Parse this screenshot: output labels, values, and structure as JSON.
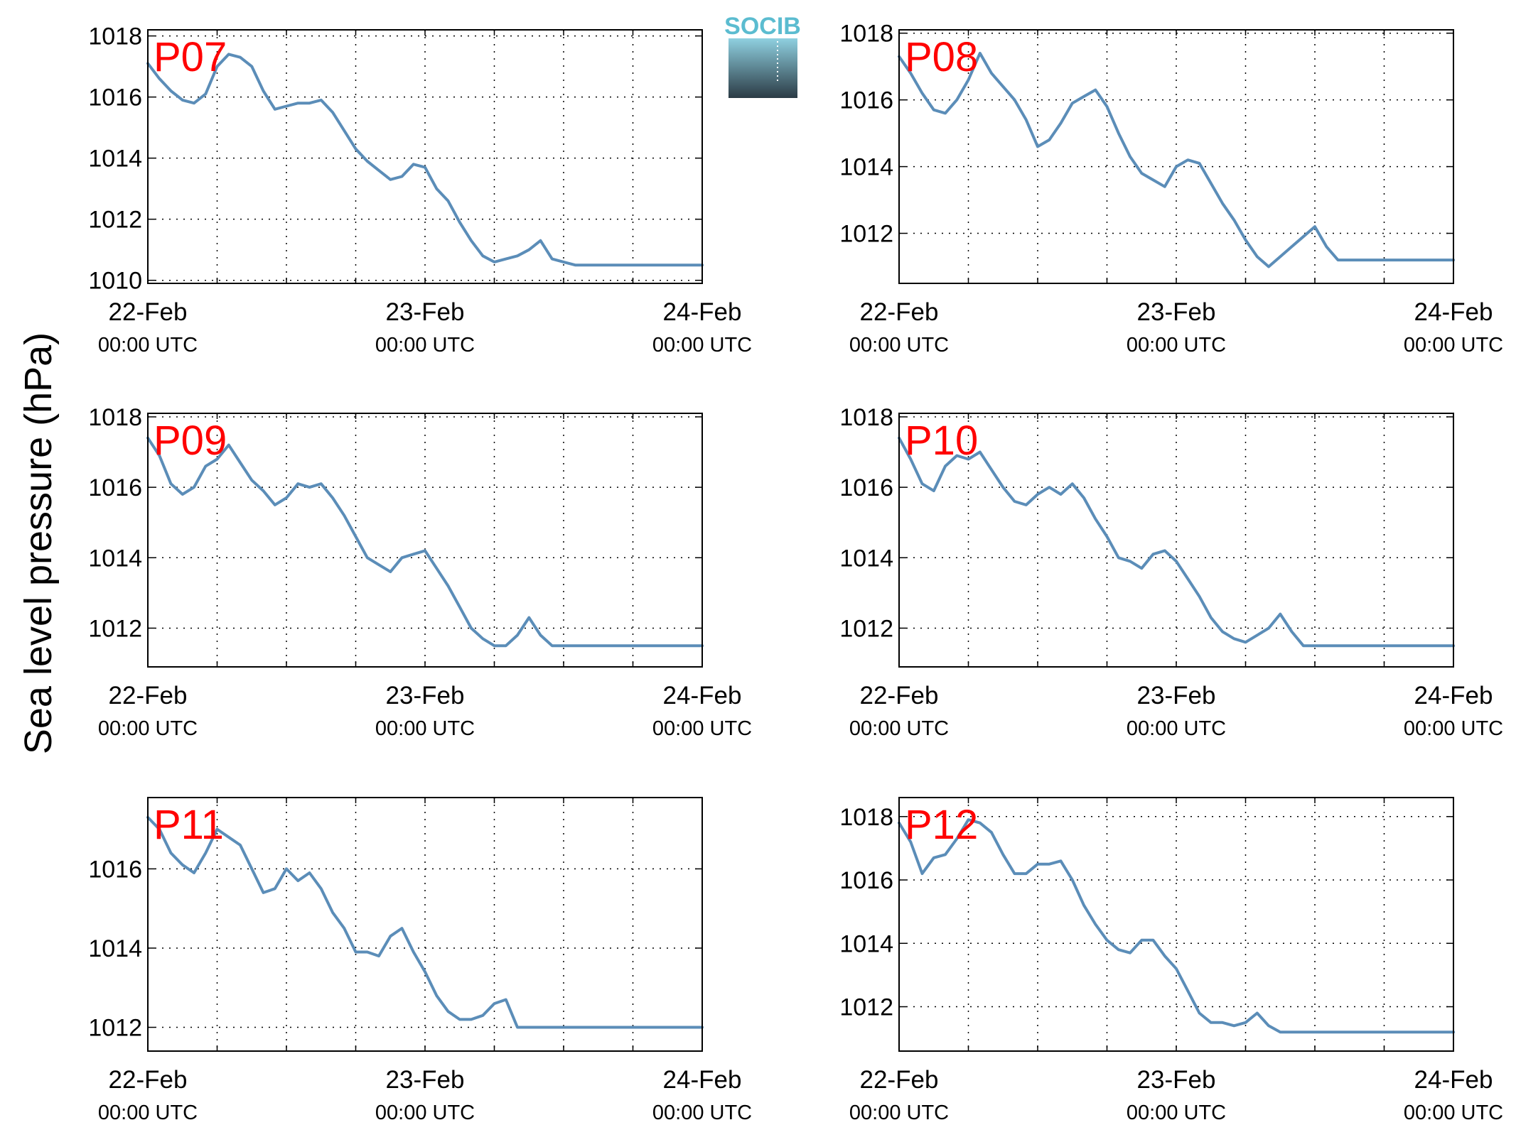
{
  "figure": {
    "ylabel": "Sea level pressure (hPa)",
    "logo_text": "SOCIB",
    "line_color": "#5b8db8",
    "label_color": "#ff0000",
    "logo_colors": {
      "text": "#5bbcd0",
      "top": "#8fd0e0",
      "bottom": "#2b3b45"
    }
  },
  "chart_data": [
    {
      "type": "line",
      "label": "P07",
      "x_ticks": [
        {
          "date": "22-Feb",
          "time": "00:00 UTC"
        },
        {
          "date": "23-Feb",
          "time": "00:00 UTC"
        },
        {
          "date": "24-Feb",
          "time": "00:00 UTC"
        }
      ],
      "xlim": [
        0,
        48
      ],
      "ylim": [
        1009.9,
        1018.2
      ],
      "yticks": [
        1010,
        1012,
        1014,
        1016,
        1018
      ],
      "grid": true,
      "x": [
        0,
        1,
        2,
        3,
        4,
        5,
        6,
        7,
        8,
        9,
        10,
        11,
        12,
        13,
        14,
        15,
        16,
        17,
        18,
        19,
        20,
        21,
        22,
        23,
        24,
        25,
        26,
        27,
        28,
        29,
        30,
        31,
        32,
        33,
        34,
        35,
        36,
        37,
        38,
        39,
        40,
        41,
        42,
        43,
        44,
        45,
        46,
        47,
        48
      ],
      "y": [
        1017.1,
        1016.6,
        1016.2,
        1015.9,
        1015.8,
        1016.1,
        1017.0,
        1017.4,
        1017.3,
        1017.0,
        1016.2,
        1015.6,
        1015.7,
        1015.8,
        1015.8,
        1015.9,
        1015.5,
        1014.9,
        1014.3,
        1013.9,
        1013.6,
        1013.3,
        1013.4,
        1013.8,
        1013.7,
        1013.0,
        1012.6,
        1011.9,
        1011.3,
        1010.8,
        1010.6,
        1010.7,
        1010.8,
        1011.0,
        1011.3,
        1010.7,
        1010.6,
        1010.5,
        1010.5,
        1010.5,
        1010.5,
        1010.5,
        1010.5,
        1010.5,
        1010.5,
        1010.5,
        1010.5,
        1010.5,
        1010.5
      ]
    },
    {
      "type": "line",
      "label": "P08",
      "x_ticks": [
        {
          "date": "22-Feb",
          "time": "00:00 UTC"
        },
        {
          "date": "23-Feb",
          "time": "00:00 UTC"
        },
        {
          "date": "24-Feb",
          "time": "00:00 UTC"
        }
      ],
      "xlim": [
        0,
        48
      ],
      "ylim": [
        1010.5,
        1018.1
      ],
      "yticks": [
        1012,
        1014,
        1016,
        1018
      ],
      "grid": true,
      "x": [
        0,
        1,
        2,
        3,
        4,
        5,
        6,
        7,
        8,
        9,
        10,
        11,
        12,
        13,
        14,
        15,
        16,
        17,
        18,
        19,
        20,
        21,
        22,
        23,
        24,
        25,
        26,
        27,
        28,
        29,
        30,
        31,
        32,
        33,
        34,
        35,
        36,
        37,
        38,
        39,
        40,
        41,
        42,
        43,
        44,
        45,
        46,
        47,
        48
      ],
      "y": [
        1017.3,
        1016.8,
        1016.2,
        1015.7,
        1015.6,
        1016.0,
        1016.6,
        1017.4,
        1016.8,
        1016.4,
        1016.0,
        1015.4,
        1014.6,
        1014.8,
        1015.3,
        1015.9,
        1016.1,
        1016.3,
        1015.8,
        1015.0,
        1014.3,
        1013.8,
        1013.6,
        1013.4,
        1014.0,
        1014.2,
        1014.1,
        1013.5,
        1012.9,
        1012.4,
        1011.8,
        1011.3,
        1011.0,
        1011.3,
        1011.6,
        1011.9,
        1012.2,
        1011.6,
        1011.2,
        1011.2,
        1011.2,
        1011.2,
        1011.2,
        1011.2,
        1011.2,
        1011.2,
        1011.2,
        1011.2,
        1011.2
      ]
    },
    {
      "type": "line",
      "label": "P09",
      "x_ticks": [
        {
          "date": "22-Feb",
          "time": "00:00 UTC"
        },
        {
          "date": "23-Feb",
          "time": "00:00 UTC"
        },
        {
          "date": "24-Feb",
          "time": "00:00 UTC"
        }
      ],
      "xlim": [
        0,
        48
      ],
      "ylim": [
        1010.9,
        1018.1
      ],
      "yticks": [
        1012,
        1014,
        1016,
        1018
      ],
      "grid": true,
      "x": [
        0,
        1,
        2,
        3,
        4,
        5,
        6,
        7,
        8,
        9,
        10,
        11,
        12,
        13,
        14,
        15,
        16,
        17,
        18,
        19,
        20,
        21,
        22,
        23,
        24,
        25,
        26,
        27,
        28,
        29,
        30,
        31,
        32,
        33,
        34,
        35,
        36,
        37,
        38,
        39,
        40,
        41,
        42,
        43,
        44,
        45,
        46,
        47,
        48
      ],
      "y": [
        1017.4,
        1016.9,
        1016.1,
        1015.8,
        1016.0,
        1016.6,
        1016.8,
        1017.2,
        1016.7,
        1016.2,
        1015.9,
        1015.5,
        1015.7,
        1016.1,
        1016.0,
        1016.1,
        1015.7,
        1015.2,
        1014.6,
        1014.0,
        1013.8,
        1013.6,
        1014.0,
        1014.1,
        1014.2,
        1013.7,
        1013.2,
        1012.6,
        1012.0,
        1011.7,
        1011.5,
        1011.5,
        1011.8,
        1012.3,
        1011.8,
        1011.5,
        1011.5,
        1011.5,
        1011.5,
        1011.5,
        1011.5,
        1011.5,
        1011.5,
        1011.5,
        1011.5,
        1011.5,
        1011.5,
        1011.5,
        1011.5
      ]
    },
    {
      "type": "line",
      "label": "P10",
      "x_ticks": [
        {
          "date": "22-Feb",
          "time": "00:00 UTC"
        },
        {
          "date": "23-Feb",
          "time": "00:00 UTC"
        },
        {
          "date": "24-Feb",
          "time": "00:00 UTC"
        }
      ],
      "xlim": [
        0,
        48
      ],
      "ylim": [
        1010.9,
        1018.1
      ],
      "yticks": [
        1012,
        1014,
        1016,
        1018
      ],
      "grid": true,
      "x": [
        0,
        1,
        2,
        3,
        4,
        5,
        6,
        7,
        8,
        9,
        10,
        11,
        12,
        13,
        14,
        15,
        16,
        17,
        18,
        19,
        20,
        21,
        22,
        23,
        24,
        25,
        26,
        27,
        28,
        29,
        30,
        31,
        32,
        33,
        34,
        35,
        36,
        37,
        38,
        39,
        40,
        41,
        42,
        43,
        44,
        45,
        46,
        47,
        48
      ],
      "y": [
        1017.4,
        1016.8,
        1016.1,
        1015.9,
        1016.6,
        1016.9,
        1016.8,
        1017.0,
        1016.5,
        1016.0,
        1015.6,
        1015.5,
        1015.8,
        1016.0,
        1015.8,
        1016.1,
        1015.7,
        1015.1,
        1014.6,
        1014.0,
        1013.9,
        1013.7,
        1014.1,
        1014.2,
        1013.9,
        1013.4,
        1012.9,
        1012.3,
        1011.9,
        1011.7,
        1011.6,
        1011.8,
        1012.0,
        1012.4,
        1011.9,
        1011.5,
        1011.5,
        1011.5,
        1011.5,
        1011.5,
        1011.5,
        1011.5,
        1011.5,
        1011.5,
        1011.5,
        1011.5,
        1011.5,
        1011.5,
        1011.5
      ]
    },
    {
      "type": "line",
      "label": "P11",
      "x_ticks": [
        {
          "date": "22-Feb",
          "time": "00:00 UTC"
        },
        {
          "date": "23-Feb",
          "time": "00:00 UTC"
        },
        {
          "date": "24-Feb",
          "time": "00:00 UTC"
        }
      ],
      "xlim": [
        0,
        48
      ],
      "ylim": [
        1011.4,
        1017.8
      ],
      "yticks": [
        1012,
        1014,
        1016
      ],
      "grid": true,
      "x": [
        0,
        1,
        2,
        3,
        4,
        5,
        6,
        7,
        8,
        9,
        10,
        11,
        12,
        13,
        14,
        15,
        16,
        17,
        18,
        19,
        20,
        21,
        22,
        23,
        24,
        25,
        26,
        27,
        28,
        29,
        30,
        31,
        32,
        33,
        34,
        35,
        36,
        37,
        38,
        39,
        40,
        41,
        42,
        43,
        44,
        45,
        46,
        47,
        48
      ],
      "y": [
        1017.3,
        1017.0,
        1016.4,
        1016.1,
        1015.9,
        1016.4,
        1017.0,
        1016.8,
        1016.6,
        1016.0,
        1015.4,
        1015.5,
        1016.0,
        1015.7,
        1015.9,
        1015.5,
        1014.9,
        1014.5,
        1013.9,
        1013.9,
        1013.8,
        1014.3,
        1014.5,
        1013.9,
        1013.4,
        1012.8,
        1012.4,
        1012.2,
        1012.2,
        1012.3,
        1012.6,
        1012.7,
        1012.0,
        1012.0,
        1012.0,
        1012.0,
        1012.0,
        1012.0,
        1012.0,
        1012.0,
        1012.0,
        1012.0,
        1012.0,
        1012.0,
        1012.0,
        1012.0,
        1012.0,
        1012.0,
        1012.0
      ]
    },
    {
      "type": "line",
      "label": "P12",
      "x_ticks": [
        {
          "date": "22-Feb",
          "time": "00:00 UTC"
        },
        {
          "date": "23-Feb",
          "time": "00:00 UTC"
        },
        {
          "date": "24-Feb",
          "time": "00:00 UTC"
        }
      ],
      "xlim": [
        0,
        48
      ],
      "ylim": [
        1010.6,
        1018.6
      ],
      "yticks": [
        1012,
        1014,
        1016,
        1018
      ],
      "grid": true,
      "x": [
        0,
        1,
        2,
        3,
        4,
        5,
        6,
        7,
        8,
        9,
        10,
        11,
        12,
        13,
        14,
        15,
        16,
        17,
        18,
        19,
        20,
        21,
        22,
        23,
        24,
        25,
        26,
        27,
        28,
        29,
        30,
        31,
        32,
        33,
        34,
        35,
        36,
        37,
        38,
        39,
        40,
        41,
        42,
        43,
        44,
        45,
        46,
        47,
        48
      ],
      "y": [
        1017.8,
        1017.2,
        1016.2,
        1016.7,
        1016.8,
        1017.3,
        1017.9,
        1017.8,
        1017.5,
        1016.8,
        1016.2,
        1016.2,
        1016.5,
        1016.5,
        1016.6,
        1016.0,
        1015.2,
        1014.6,
        1014.1,
        1013.8,
        1013.7,
        1014.1,
        1014.1,
        1013.6,
        1013.2,
        1012.5,
        1011.8,
        1011.5,
        1011.5,
        1011.4,
        1011.5,
        1011.8,
        1011.4,
        1011.2,
        1011.2,
        1011.2,
        1011.2,
        1011.2,
        1011.2,
        1011.2,
        1011.2,
        1011.2,
        1011.2,
        1011.2,
        1011.2,
        1011.2,
        1011.2,
        1011.2,
        1011.2
      ]
    }
  ]
}
